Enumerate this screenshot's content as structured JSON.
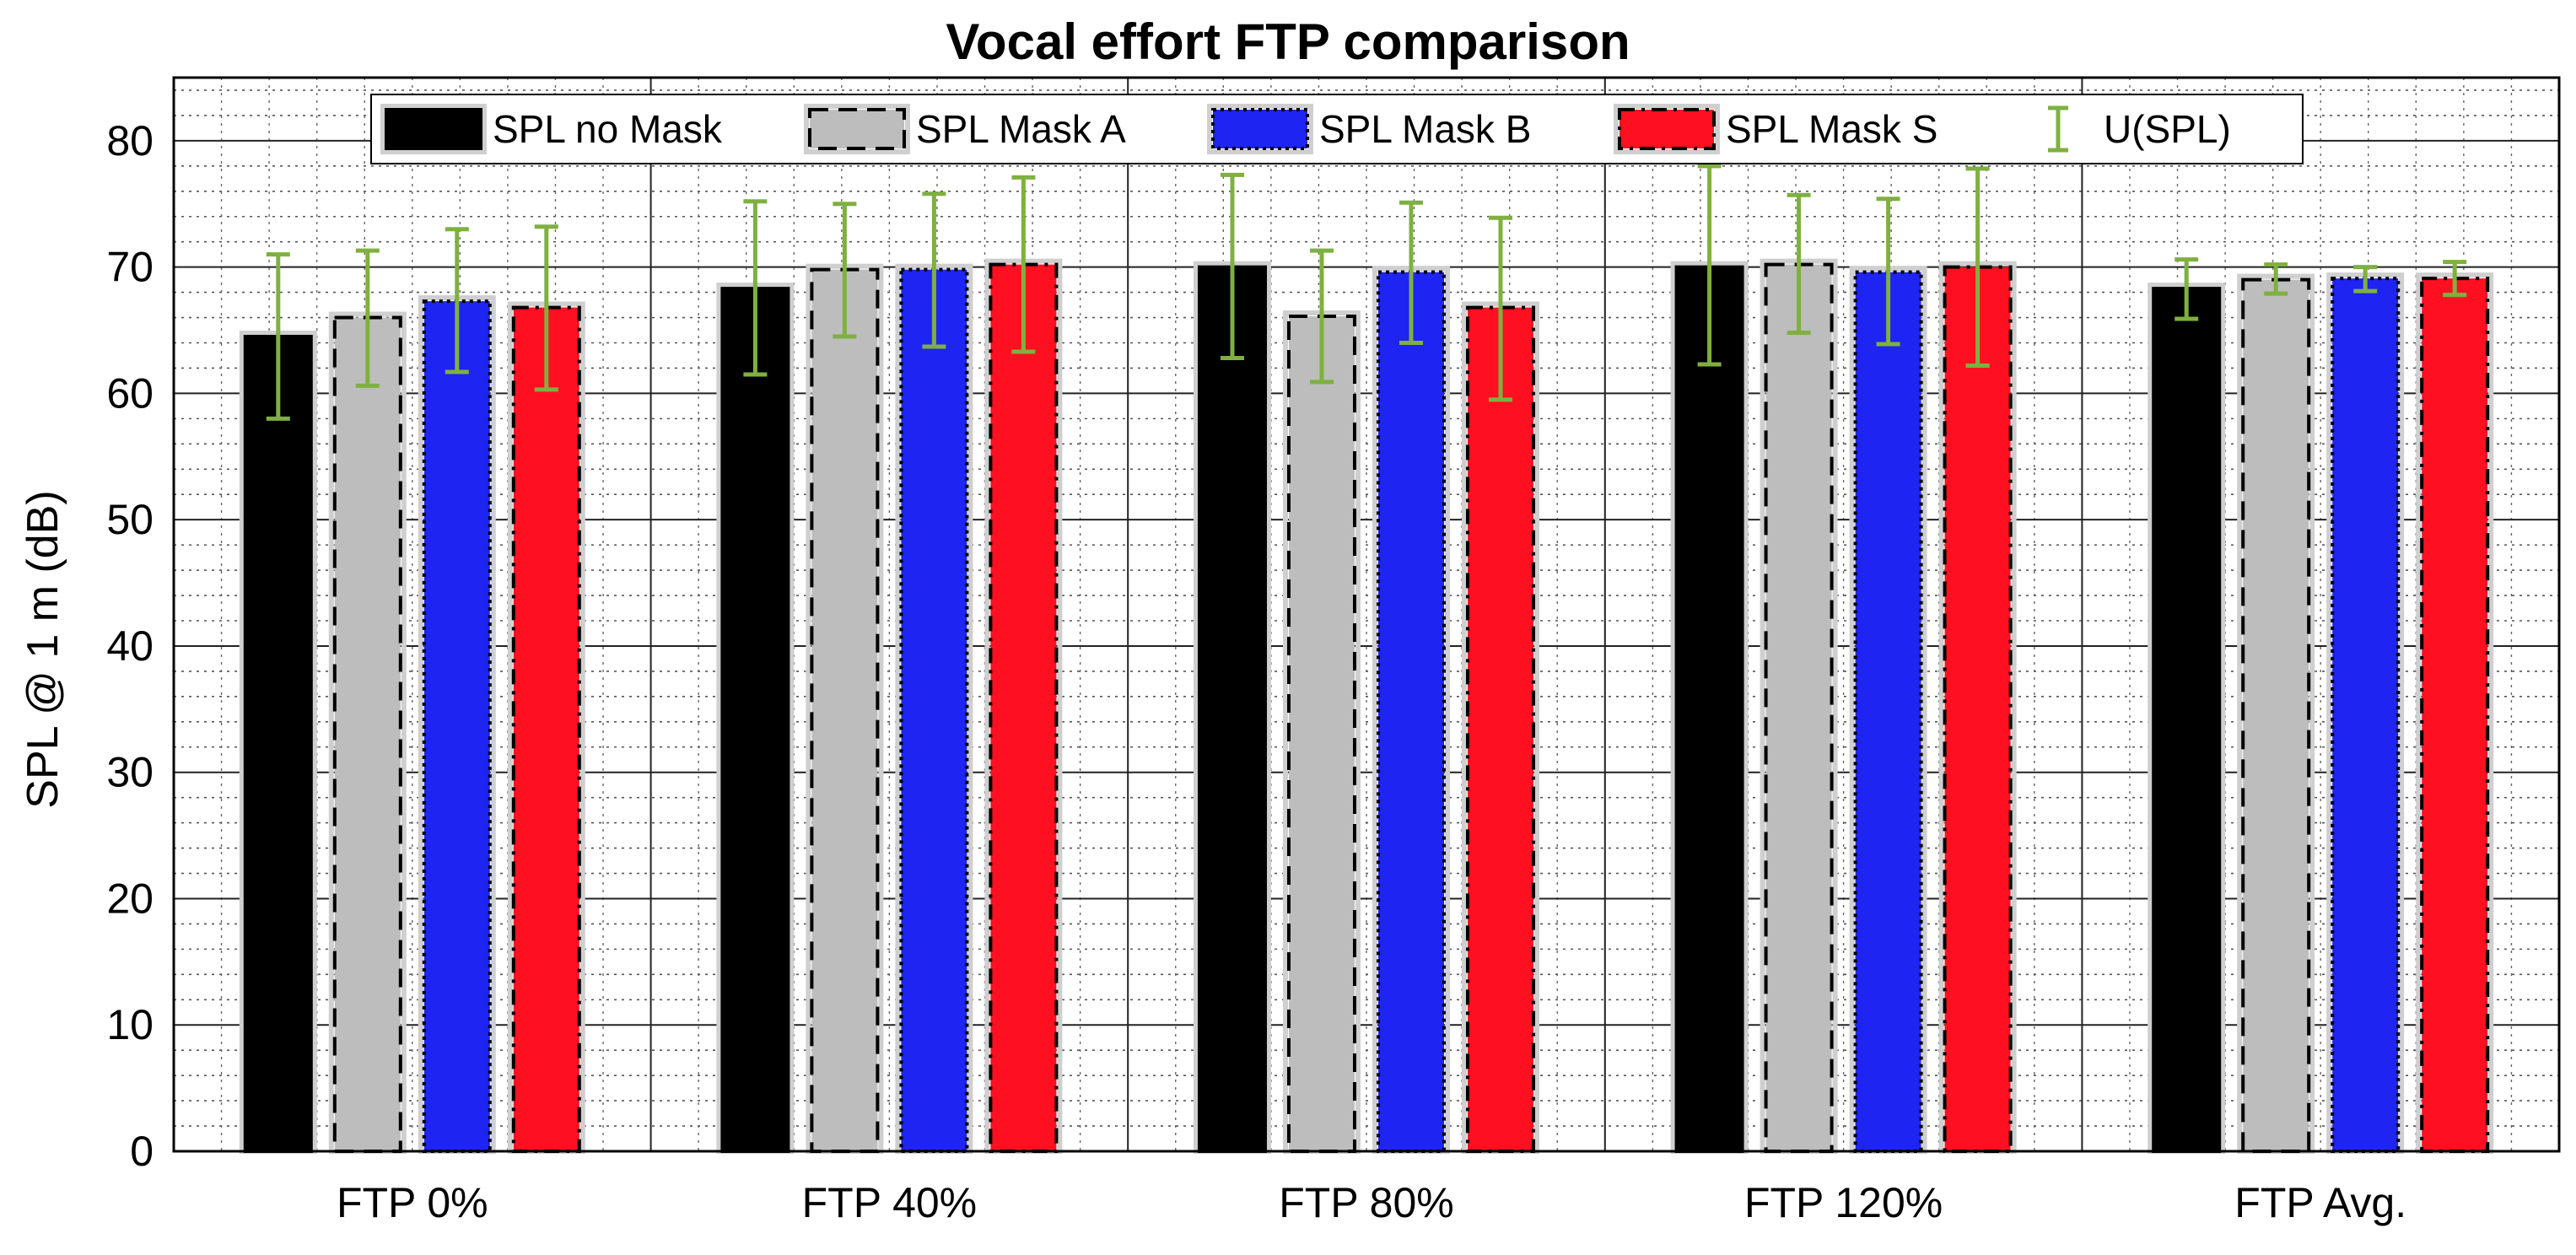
{
  "chart_data": {
    "type": "bar",
    "title": "Vocal effort FTP comparison",
    "xlabel": "",
    "ylabel": "SPL @ 1 m (dB)",
    "ylim": [
      0,
      85
    ],
    "yticks": [
      0,
      10,
      20,
      30,
      40,
      50,
      60,
      70,
      80
    ],
    "categories": [
      "FTP 0%",
      "FTP 40%",
      "FTP 80%",
      "FTP 120%",
      "FTP Avg."
    ],
    "grid": true,
    "legend_position": "top",
    "series": [
      {
        "name": "SPL no Mask",
        "color": "#000000",
        "border": "solid",
        "values": [
          64.5,
          68.3,
          70.0,
          70.0,
          68.3
        ],
        "error_low": [
          58.0,
          61.5,
          62.8,
          62.3,
          65.9
        ],
        "error_high": [
          71.0,
          75.2,
          77.3,
          78.0,
          70.6
        ]
      },
      {
        "name": "SPL Mask A",
        "color": "#bdbdbd",
        "border": "dashed",
        "values": [
          66.0,
          69.8,
          66.1,
          70.2,
          69.0
        ],
        "error_low": [
          60.6,
          64.5,
          60.9,
          64.8,
          67.9
        ],
        "error_high": [
          71.3,
          75.0,
          71.3,
          75.7,
          70.2
        ]
      },
      {
        "name": "SPL Mask B",
        "color": "#1e24f2",
        "border": "dotted",
        "values": [
          67.3,
          69.8,
          69.6,
          69.6,
          69.1
        ],
        "error_low": [
          61.7,
          63.7,
          64.0,
          63.9,
          68.1
        ],
        "error_high": [
          73.0,
          75.8,
          75.1,
          75.4,
          70.0
        ]
      },
      {
        "name": "SPL Mask S",
        "color": "#ff1020",
        "border": "dashdot",
        "values": [
          66.8,
          70.2,
          66.8,
          70.0,
          69.1
        ],
        "error_low": [
          60.3,
          63.3,
          59.5,
          62.2,
          67.8
        ],
        "error_high": [
          73.2,
          77.1,
          73.9,
          77.8,
          70.4
        ]
      }
    ],
    "error_series": {
      "name": "U(SPL)",
      "color": "#7fb040"
    }
  }
}
